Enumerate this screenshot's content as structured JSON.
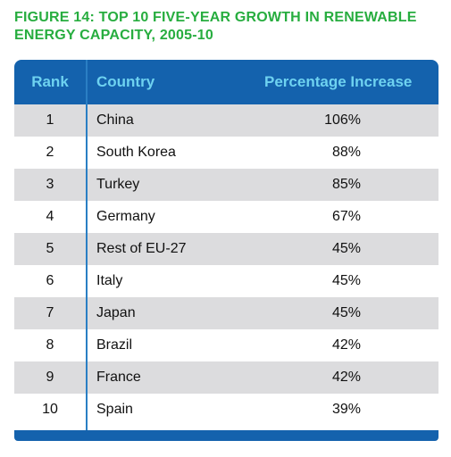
{
  "title": "FIGURE 14: TOP 10 FIVE-YEAR GROWTH IN RENEWABLE ENERGY CAPACITY, 2005-10",
  "colors": {
    "title": "#27ad3f",
    "header_bg": "#1462ad",
    "header_text": "#6ed2f0",
    "row_shade": "#dcdcde",
    "divider": "#2a7fc4"
  },
  "table": {
    "headers": [
      "Rank",
      "Country",
      "Percentage Increase"
    ],
    "rows": [
      {
        "rank": "1",
        "country": "China",
        "pct": "106%"
      },
      {
        "rank": "2",
        "country": "South Korea",
        "pct": "88%"
      },
      {
        "rank": "3",
        "country": "Turkey",
        "pct": "85%"
      },
      {
        "rank": "4",
        "country": "Germany",
        "pct": "67%"
      },
      {
        "rank": "5",
        "country": "Rest of EU-27",
        "pct": "45%"
      },
      {
        "rank": "6",
        "country": "Italy",
        "pct": "45%"
      },
      {
        "rank": "7",
        "country": "Japan",
        "pct": "45%"
      },
      {
        "rank": "8",
        "country": "Brazil",
        "pct": "42%"
      },
      {
        "rank": "9",
        "country": "France",
        "pct": "42%"
      },
      {
        "rank": "10",
        "country": "Spain",
        "pct": "39%"
      }
    ]
  }
}
